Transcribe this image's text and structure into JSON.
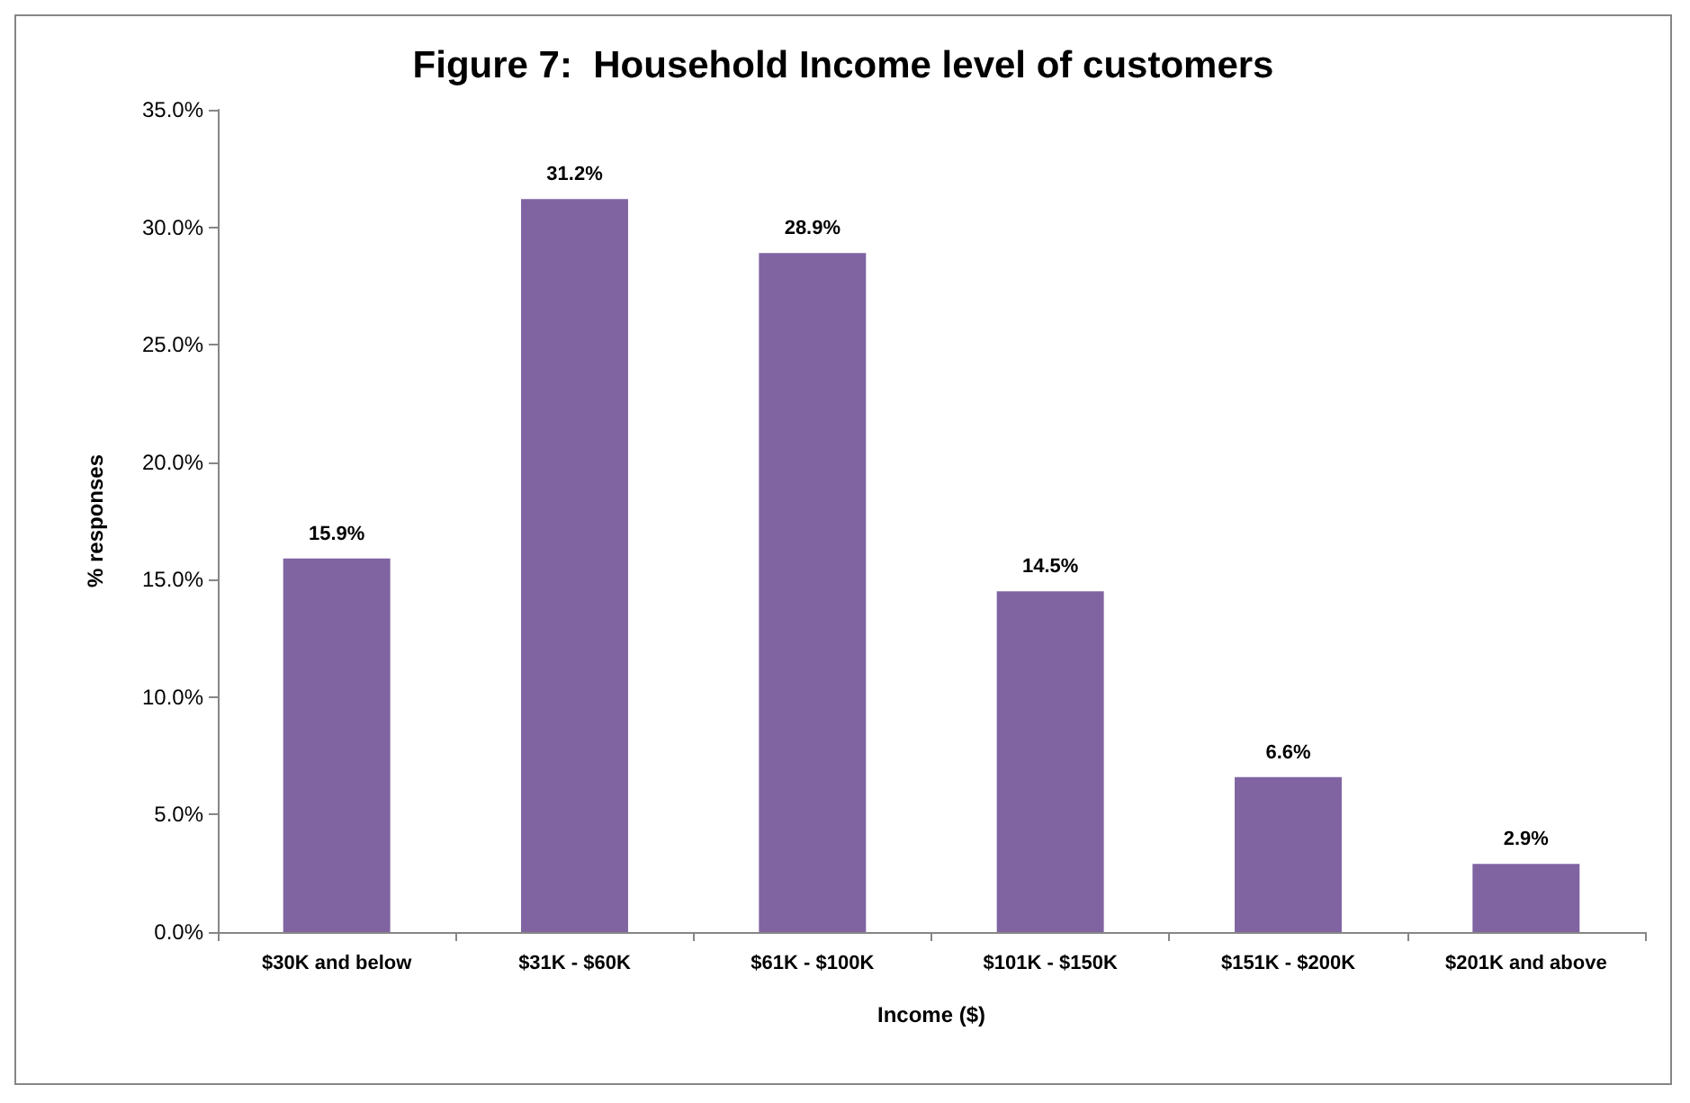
{
  "chart_data": {
    "type": "bar",
    "title": "Figure 7:  Household Income level of customers",
    "xlabel": "Income ($)",
    "ylabel": "% responses",
    "categories": [
      "$30K and below",
      "$31K - $60K",
      "$61K - $100K",
      "$101K - $150K",
      "$151K - $200K",
      "$201K and above"
    ],
    "values": [
      15.9,
      31.2,
      28.9,
      14.5,
      6.6,
      2.9
    ],
    "value_labels": [
      "15.9%",
      "31.2%",
      "28.9%",
      "14.5%",
      "6.6%",
      "2.9%"
    ],
    "color": "#8064a2",
    "ylim": [
      0,
      35
    ],
    "yticks": [
      {
        "value": 0,
        "label": "0.0%"
      },
      {
        "value": 5,
        "label": "5.0%"
      },
      {
        "value": 10,
        "label": "10.0%"
      },
      {
        "value": 15,
        "label": "15.0%"
      },
      {
        "value": 20,
        "label": "20.0%"
      },
      {
        "value": 25,
        "label": "25.0%"
      },
      {
        "value": 30,
        "label": "30.0%"
      },
      {
        "value": 35,
        "label": "35.0%"
      }
    ],
    "grid": false
  }
}
